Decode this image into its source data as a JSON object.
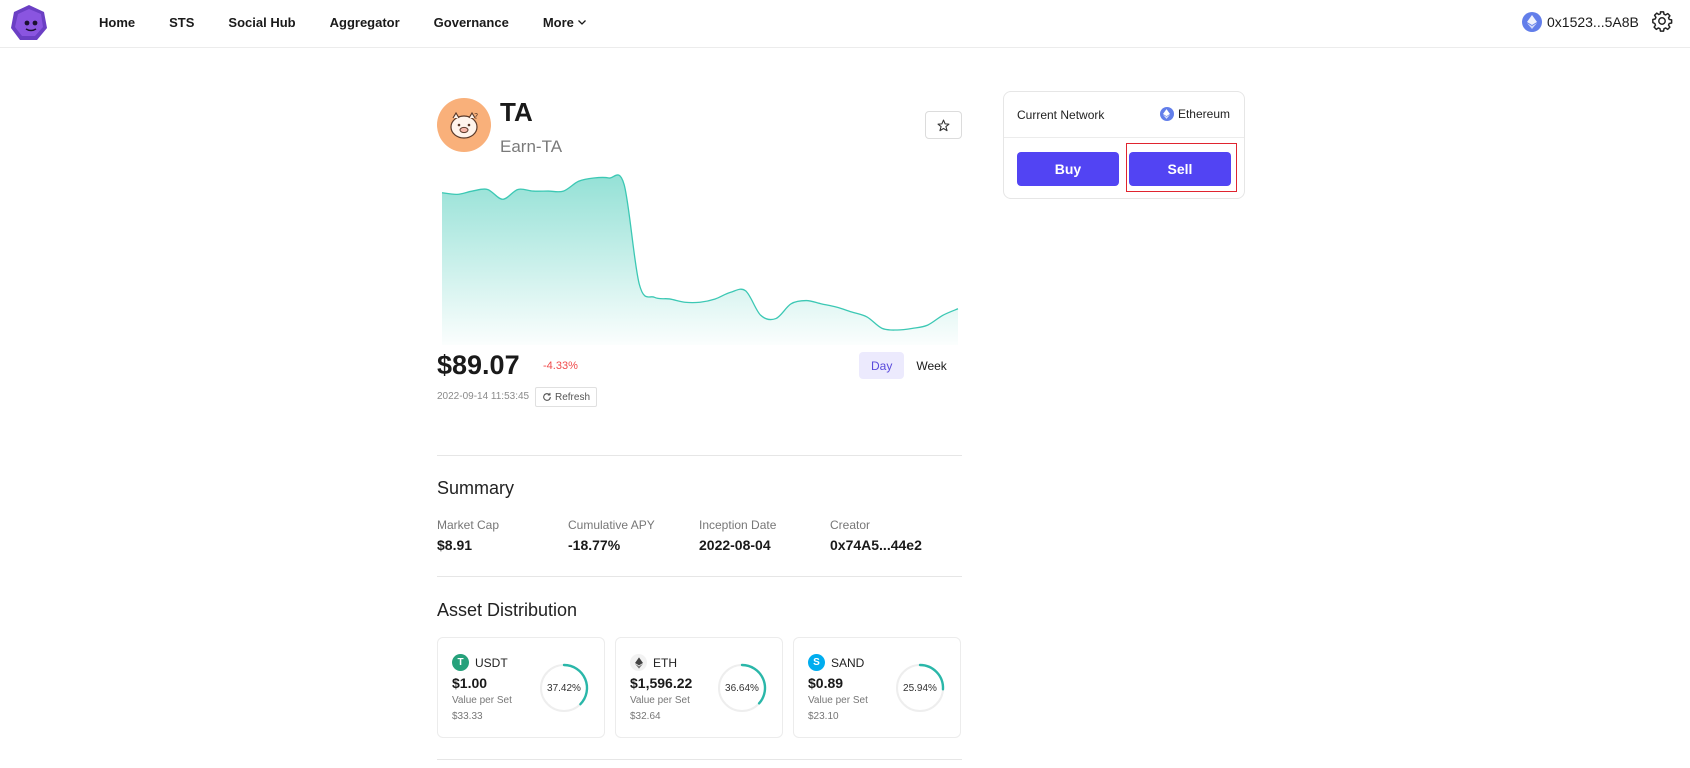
{
  "nav": {
    "items": [
      "Home",
      "STS",
      "Social Hub",
      "Aggregator",
      "Governance",
      "More"
    ],
    "wallet_address": "0x1523...5A8B"
  },
  "token": {
    "symbol": "TA",
    "name": "Earn-TA",
    "price": "$89.07",
    "change": "-4.33%",
    "timestamp": "2022-09-14 11:53:45",
    "refresh_label": "Refresh",
    "range_tabs": [
      "Day",
      "Week"
    ],
    "active_range": "Day"
  },
  "summary": {
    "title": "Summary",
    "stats": [
      {
        "label": "Market Cap",
        "value": "$8.91"
      },
      {
        "label": "Cumulative APY",
        "value": "-18.77%"
      },
      {
        "label": "Inception Date",
        "value": "2022-08-04"
      },
      {
        "label": "Creator",
        "value": "0x74A5...44e2"
      }
    ]
  },
  "assets": {
    "title": "Asset Distribution",
    "items": [
      {
        "symbol": "USDT",
        "price": "$1.00",
        "vps_label": "Value per Set",
        "vps_value": "$33.33",
        "percent_label": "37.42%",
        "percent": 37.42,
        "icon_color": "#26a17b",
        "icon": "usdt-icon"
      },
      {
        "symbol": "ETH",
        "price": "$1,596.22",
        "vps_label": "Value per Set",
        "vps_value": "$32.64",
        "percent_label": "36.64%",
        "percent": 36.64,
        "icon_color": "#ffffff",
        "icon": "eth-icon"
      },
      {
        "symbol": "SAND",
        "price": "$0.89",
        "vps_label": "Value per Set",
        "vps_value": "$23.10",
        "percent_label": "25.94%",
        "percent": 25.94,
        "icon_color": "#00adef",
        "icon": "sand-icon"
      }
    ]
  },
  "trade": {
    "network_label": "Current Network",
    "network_value": "Ethereum",
    "buy_label": "Buy",
    "sell_label": "Sell"
  },
  "colors": {
    "accent": "#5244f3",
    "chart_line": "#3cc8b4",
    "negative": "#f04a4a",
    "highlight_box": "#e0242f"
  },
  "chart_data": {
    "type": "area",
    "series": [
      {
        "values": [
          0.77,
          0.76,
          0.78,
          0.79,
          0.73,
          0.79,
          0.78,
          0.78,
          0.78,
          0.84,
          0.86,
          0.86,
          0.82,
          0.21,
          0.13,
          0.12,
          0.1,
          0.1,
          0.12,
          0.16,
          0.17,
          0.02,
          -0.0,
          0.09,
          0.11,
          0.09,
          0.07,
          0.04,
          0.01,
          -0.06,
          -0.07,
          -0.06,
          -0.04,
          0.02,
          0.06
        ]
      }
    ],
    "grid": false
  }
}
